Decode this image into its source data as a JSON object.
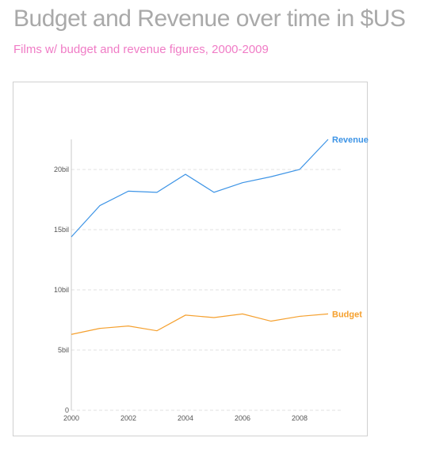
{
  "header": {
    "title": "Budget and Revenue over time in $US",
    "subtitle": "Films w/ budget and revenue figures, 2000-2009"
  },
  "chart_data": {
    "type": "line",
    "x": [
      2000,
      2001,
      2002,
      2003,
      2004,
      2005,
      2006,
      2007,
      2008,
      2009
    ],
    "series": [
      {
        "name": "Revenue",
        "color": "#3d94e6",
        "values": [
          14.4,
          17.0,
          18.2,
          18.1,
          19.6,
          18.1,
          18.9,
          19.4,
          20.0,
          22.5
        ]
      },
      {
        "name": "Budget",
        "color": "#f5a02e",
        "values": [
          6.3,
          6.8,
          7.0,
          6.6,
          7.9,
          7.7,
          8.0,
          7.4,
          7.8,
          8.0
        ]
      }
    ],
    "xticks": [
      2000,
      2002,
      2004,
      2006,
      2008
    ],
    "xtick_labels": [
      "2000",
      "2002",
      "2004",
      "2006",
      "2008"
    ],
    "yticks": [
      0,
      5,
      10,
      15,
      20
    ],
    "ytick_labels": [
      "0",
      "5bil",
      "10bil",
      "15bil",
      "20bil"
    ],
    "xlim": [
      2000,
      2009.5
    ],
    "ylim": [
      0,
      22.5
    ],
    "grid": "horizontal dashed",
    "legend": "inline labels at line ends"
  }
}
